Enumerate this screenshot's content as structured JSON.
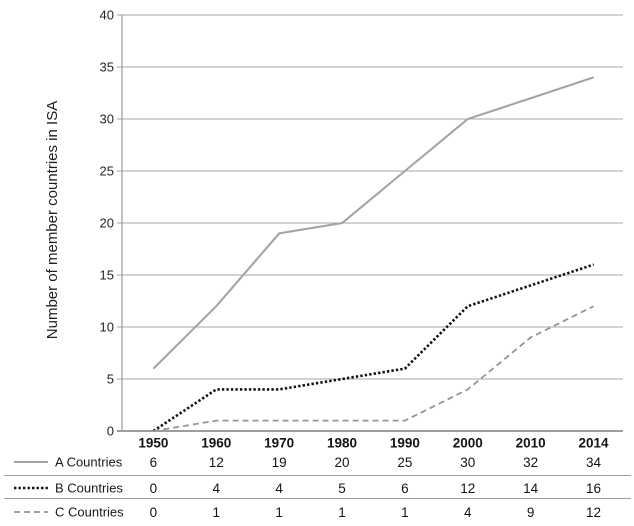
{
  "chart_data": {
    "type": "line",
    "title": "",
    "ylabel": "Number of member countries in ISA",
    "xlabel": "",
    "x_categories": [
      "1950",
      "1960",
      "1970",
      "1980",
      "1990",
      "2000",
      "2010",
      "2014"
    ],
    "ylim": [
      0,
      40
    ],
    "yticks": [
      0,
      5,
      10,
      15,
      20,
      25,
      30,
      35,
      40
    ],
    "grid": "horizontal gridlines at every y tick, extending slightly left of axis as tick marks",
    "legend_position": "bottom-left, one legend row per series forming the left column of the data table",
    "series": [
      {
        "name": "A Countries",
        "line_style": "solid",
        "color": "#a4a4a4",
        "values": [
          6,
          12,
          19,
          20,
          25,
          30,
          32,
          34
        ]
      },
      {
        "name": "B Countries",
        "line_style": "dotted",
        "color": "#141414",
        "values": [
          0,
          4,
          4,
          5,
          6,
          12,
          14,
          16
        ]
      },
      {
        "name": "C Countries",
        "line_style": "dashed",
        "color": "#949494",
        "values": [
          0,
          1,
          1,
          1,
          1,
          4,
          9,
          12
        ]
      }
    ],
    "table": {
      "header_row": [
        "1950",
        "1960",
        "1970",
        "1980",
        "1990",
        "2000",
        "2010",
        "2014"
      ],
      "rows": [
        {
          "label": "A Countries",
          "values": [
            "6",
            "12",
            "19",
            "20",
            "25",
            "30",
            "32",
            "34"
          ]
        },
        {
          "label": "B Countries",
          "values": [
            "0",
            "4",
            "4",
            "5",
            "6",
            "12",
            "14",
            "16"
          ]
        },
        {
          "label": "C Countries",
          "values": [
            "0",
            "1",
            "1",
            "1",
            "1",
            "4",
            "9",
            "12"
          ]
        }
      ]
    },
    "colors": {
      "axis": "#7e7e7e",
      "gridline": "#a6a6a6",
      "row_separator": "#9f9f9f",
      "text": "#1a1a1a",
      "background": "#ffffff"
    }
  }
}
